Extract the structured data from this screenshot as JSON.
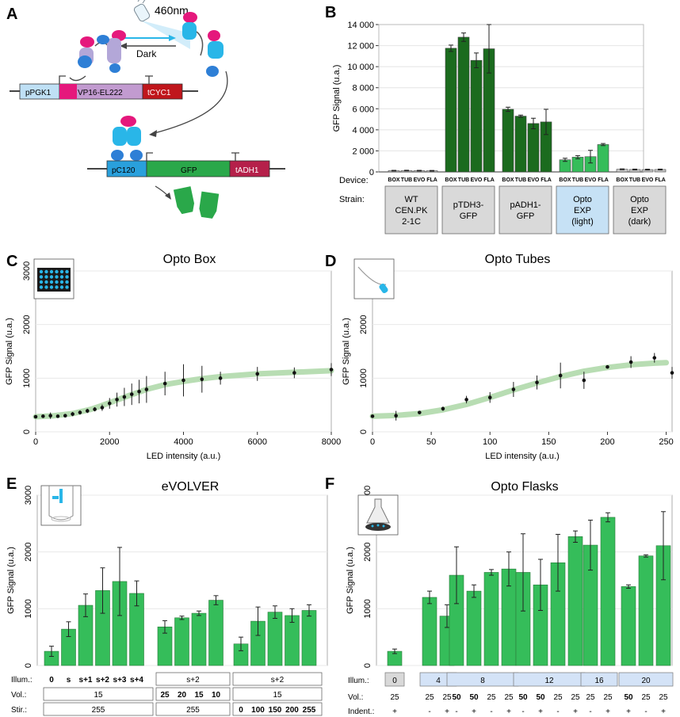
{
  "figure": {
    "panel_letters": [
      "A",
      "B",
      "C",
      "D",
      "E",
      "F"
    ],
    "colors": {
      "dark_green": "#1b6b1e",
      "mid_green": "#2f9e3a",
      "light_green": "#35bd5a",
      "grey_bar": "#c8c8c8",
      "cyan": "#29b6e8",
      "blue": "#2e7fd6",
      "magenta": "#e5187c",
      "red": "#c0161c",
      "purple": "#a597d0",
      "fit": "#b8ddb3",
      "box_grey": "#d9d9d9",
      "box_blue": "#c6e1f5",
      "illum_blue": "#d4e3f7"
    }
  },
  "schematic": {
    "light_label": "460nm",
    "dark_label": "Dark",
    "construct1": [
      "pPGK1",
      "VP16-EL222",
      "tCYC1"
    ],
    "construct2": [
      "pC120",
      "GFP",
      "tADH1"
    ]
  },
  "chart_data": [
    {
      "panel": "B",
      "type": "bar",
      "title": "",
      "ylabel": "GFP Signal (u.a.)",
      "ylim": [
        0,
        14000
      ],
      "yticks": [
        0,
        2000,
        4000,
        6000,
        8000,
        10000,
        12000,
        14000
      ],
      "ytick_labels": [
        "0",
        "2 000",
        "4 000",
        "6 000",
        "8 000",
        "10 000",
        "12 000",
        "14 000"
      ],
      "row_labels": {
        "device": "Device:",
        "strain": "Strain:"
      },
      "device_labels": [
        "BOX",
        "TUB",
        "EVO",
        "FLA"
      ],
      "groups": [
        {
          "strain": "WT CEN.PK 2-1C",
          "strain_lines": [
            "WT",
            "CEN.PK",
            "2-1C"
          ],
          "color": "grey",
          "values": [
            120,
            130,
            120,
            110
          ],
          "errors": [
            30,
            30,
            30,
            30
          ]
        },
        {
          "strain": "pTDH3-GFP",
          "strain_lines": [
            "pTDH3-",
            "GFP"
          ],
          "color": "dark",
          "values": [
            11750,
            12800,
            10600,
            11700
          ],
          "errors": [
            300,
            400,
            700,
            2300
          ]
        },
        {
          "strain": "pADH1-GFP",
          "strain_lines": [
            "pADH1-",
            "GFP"
          ],
          "color": "dark",
          "values": [
            5950,
            5300,
            4600,
            4750
          ],
          "errors": [
            200,
            100,
            500,
            1200
          ]
        },
        {
          "strain": "Opto EXP (light)",
          "strain_lines": [
            "Opto",
            "EXP",
            "(light)"
          ],
          "color": "light",
          "values": [
            1150,
            1400,
            1450,
            2600
          ],
          "errors": [
            150,
            150,
            600,
            100
          ]
        },
        {
          "strain": "Opto EXP (dark)",
          "strain_lines": [
            "Opto",
            "EXP",
            "(dark)"
          ],
          "color": "grey",
          "values": [
            250,
            230,
            220,
            230
          ],
          "errors": [
            40,
            40,
            40,
            40
          ]
        }
      ]
    },
    {
      "panel": "C",
      "type": "scatter",
      "title": "Opto Box",
      "xlabel": "LED intensity (a.u.)",
      "ylabel": "GFP Signal (u.a.)",
      "xlim": [
        0,
        8000
      ],
      "ylim": [
        0,
        3000
      ],
      "xticks": [
        0,
        2000,
        4000,
        6000,
        8000
      ],
      "yticks": [
        0,
        1000,
        2000,
        3000
      ],
      "x": [
        0,
        200,
        400,
        600,
        800,
        1000,
        1200,
        1400,
        1600,
        1800,
        2000,
        2200,
        2400,
        2600,
        2800,
        3000,
        3500,
        4000,
        4500,
        5000,
        6000,
        7000,
        8000
      ],
      "y": [
        280,
        290,
        300,
        290,
        300,
        330,
        360,
        390,
        420,
        450,
        530,
        600,
        650,
        700,
        750,
        790,
        900,
        960,
        980,
        1000,
        1080,
        1100,
        1160
      ],
      "err": [
        20,
        30,
        60,
        30,
        30,
        40,
        40,
        40,
        40,
        60,
        100,
        130,
        170,
        200,
        220,
        250,
        220,
        300,
        250,
        120,
        130,
        100,
        120
      ],
      "fit": {
        "x": [
          0,
          500,
          1000,
          1500,
          2000,
          2500,
          3000,
          3500,
          4000,
          4500,
          5000,
          6000,
          7000,
          8000
        ],
        "y": [
          280,
          300,
          340,
          420,
          540,
          670,
          790,
          880,
          940,
          990,
          1030,
          1080,
          1110,
          1140
        ]
      }
    },
    {
      "panel": "D",
      "type": "scatter",
      "title": "Opto Tubes",
      "xlabel": "LED intensity (a.u.)",
      "ylabel": "GFP Signal (u.a.)",
      "xlim": [
        0,
        255
      ],
      "ylim": [
        0,
        3000
      ],
      "xticks": [
        0,
        50,
        100,
        150,
        200,
        250
      ],
      "yticks": [
        0,
        1000,
        2000,
        3000
      ],
      "x": [
        0,
        20,
        40,
        60,
        80,
        100,
        120,
        140,
        160,
        180,
        200,
        220,
        240,
        255
      ],
      "y": [
        290,
        300,
        360,
        430,
        600,
        640,
        790,
        920,
        1050,
        960,
        1210,
        1300,
        1380,
        1100
      ],
      "err": [
        20,
        90,
        30,
        40,
        70,
        100,
        140,
        130,
        240,
        160,
        30,
        110,
        90,
        110
      ],
      "fit": {
        "x": [
          0,
          20,
          40,
          60,
          80,
          100,
          120,
          140,
          160,
          180,
          200,
          220,
          240,
          250
        ],
        "y": [
          290,
          305,
          340,
          410,
          510,
          640,
          780,
          910,
          1030,
          1130,
          1200,
          1250,
          1280,
          1290
        ]
      }
    },
    {
      "panel": "E",
      "type": "bar",
      "title": "eVOLVER",
      "ylabel": "GFP Signal (u.a.)",
      "ylim": [
        0,
        3000
      ],
      "yticks": [
        0,
        1000,
        2000,
        3000
      ],
      "row_labels": {
        "illum": "Illum.:",
        "vol": "Vol.:",
        "stir": "Stir.:"
      },
      "groups": [
        {
          "illum": [
            "0",
            "s",
            "s+1",
            "s+2",
            "s+3",
            "s+4"
          ],
          "vol": "15",
          "stir": "255",
          "values": [
            250,
            640,
            1060,
            1320,
            1480,
            1270
          ],
          "errors": [
            90,
            130,
            200,
            400,
            600,
            220
          ]
        },
        {
          "illum": "s+2",
          "vol": [
            "25",
            "20",
            "15",
            "10"
          ],
          "stir": "255",
          "values": [
            680,
            840,
            920,
            1150
          ],
          "errors": [
            110,
            30,
            40,
            80
          ]
        },
        {
          "illum": "s+2",
          "vol": "15",
          "stir": [
            "0",
            "100",
            "150",
            "200",
            "255"
          ],
          "values": [
            380,
            780,
            940,
            880,
            970
          ],
          "errors": [
            120,
            250,
            110,
            120,
            100
          ]
        }
      ]
    },
    {
      "panel": "F",
      "type": "bar",
      "title": "Opto Flasks",
      "ylabel": "GFP Signal (u.a.)",
      "ylim": [
        0,
        3000
      ],
      "yticks": [
        0,
        1000,
        2000,
        3000
      ],
      "row_labels": {
        "illum": "Illum.:",
        "vol": "Vol.:",
        "indent": "Indent.:"
      },
      "groups": [
        {
          "illum": "0",
          "vol": [
            "25"
          ],
          "indent": [
            "+"
          ],
          "values": [
            250
          ],
          "errors": [
            40
          ]
        },
        {
          "illum": "4",
          "vol": [
            "25",
            "25"
          ],
          "indent": [
            "-",
            "+"
          ],
          "values": [
            1200,
            870
          ],
          "errors": [
            110,
            200
          ]
        },
        {
          "illum": "8",
          "vol": [
            "50",
            "50",
            "25",
            "25"
          ],
          "indent": [
            "-",
            "+",
            "-",
            "+"
          ],
          "values": [
            1590,
            1310,
            1640,
            1700
          ],
          "errors": [
            500,
            110,
            50,
            300
          ]
        },
        {
          "illum": "12",
          "vol": [
            "50",
            "50",
            "25",
            "25"
          ],
          "indent": [
            "-",
            "+",
            "-",
            "+"
          ],
          "values": [
            1640,
            1420,
            1810,
            2270
          ],
          "errors": [
            680,
            450,
            500,
            100
          ]
        },
        {
          "illum": "16",
          "vol": [
            "25",
            "25"
          ],
          "indent": [
            "-",
            "+"
          ],
          "values": [
            2120,
            2610
          ],
          "errors": [
            440,
            80
          ]
        },
        {
          "illum": "20",
          "vol": [
            "50",
            "25",
            "25"
          ],
          "indent": [
            "+",
            "-",
            "+"
          ],
          "values": [
            1390,
            1930,
            2110
          ],
          "errors": [
            30,
            20,
            600
          ]
        }
      ]
    }
  ]
}
